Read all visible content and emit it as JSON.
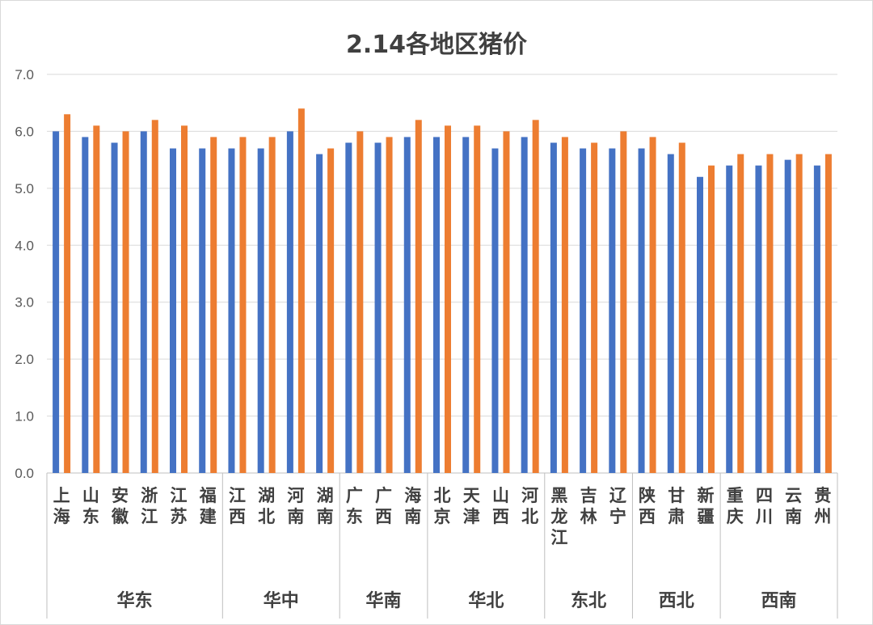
{
  "chart_data": {
    "type": "bar",
    "title": "2.14各地区猪价",
    "xlabel": "",
    "ylabel": "",
    "ylim": [
      0,
      7
    ],
    "yticks": [
      "0.0",
      "1.0",
      "2.0",
      "3.0",
      "4.0",
      "5.0",
      "6.0",
      "7.0"
    ],
    "grid": true,
    "legend": "none",
    "categories": [
      "上海",
      "山东",
      "安徽",
      "浙江",
      "江苏",
      "福建",
      "江西",
      "湖北",
      "河南",
      "湖南",
      "广东",
      "广西",
      "海南",
      "北京",
      "天津",
      "山西",
      "河北",
      "黑龙江",
      "吉林",
      "辽宁",
      "陕西",
      "甘肃",
      "新疆",
      "重庆",
      "四川",
      "云南",
      "贵州"
    ],
    "groups": [
      {
        "label": "华东",
        "count": 6
      },
      {
        "label": "华中",
        "count": 4
      },
      {
        "label": "华南",
        "count": 3
      },
      {
        "label": "华北",
        "count": 4
      },
      {
        "label": "东北",
        "count": 3
      },
      {
        "label": "西北",
        "count": 3
      },
      {
        "label": "西南",
        "count": 4
      }
    ],
    "series": [
      {
        "color": "#4472c4",
        "values": [
          6.0,
          5.9,
          5.8,
          6.0,
          5.7,
          5.7,
          5.7,
          5.7,
          6.0,
          5.6,
          5.8,
          5.8,
          5.9,
          5.9,
          5.9,
          5.7,
          5.9,
          5.8,
          5.7,
          5.7,
          5.7,
          5.6,
          5.2,
          5.4,
          5.4,
          5.5,
          5.4
        ]
      },
      {
        "color": "#ed7d31",
        "values": [
          6.3,
          6.1,
          6.0,
          6.2,
          6.1,
          5.9,
          5.9,
          5.9,
          6.4,
          5.7,
          6.0,
          5.9,
          6.2,
          6.1,
          6.1,
          6.0,
          6.2,
          5.9,
          5.8,
          6.0,
          5.9,
          5.8,
          5.4,
          5.6,
          5.6,
          5.6,
          5.6
        ]
      }
    ]
  }
}
